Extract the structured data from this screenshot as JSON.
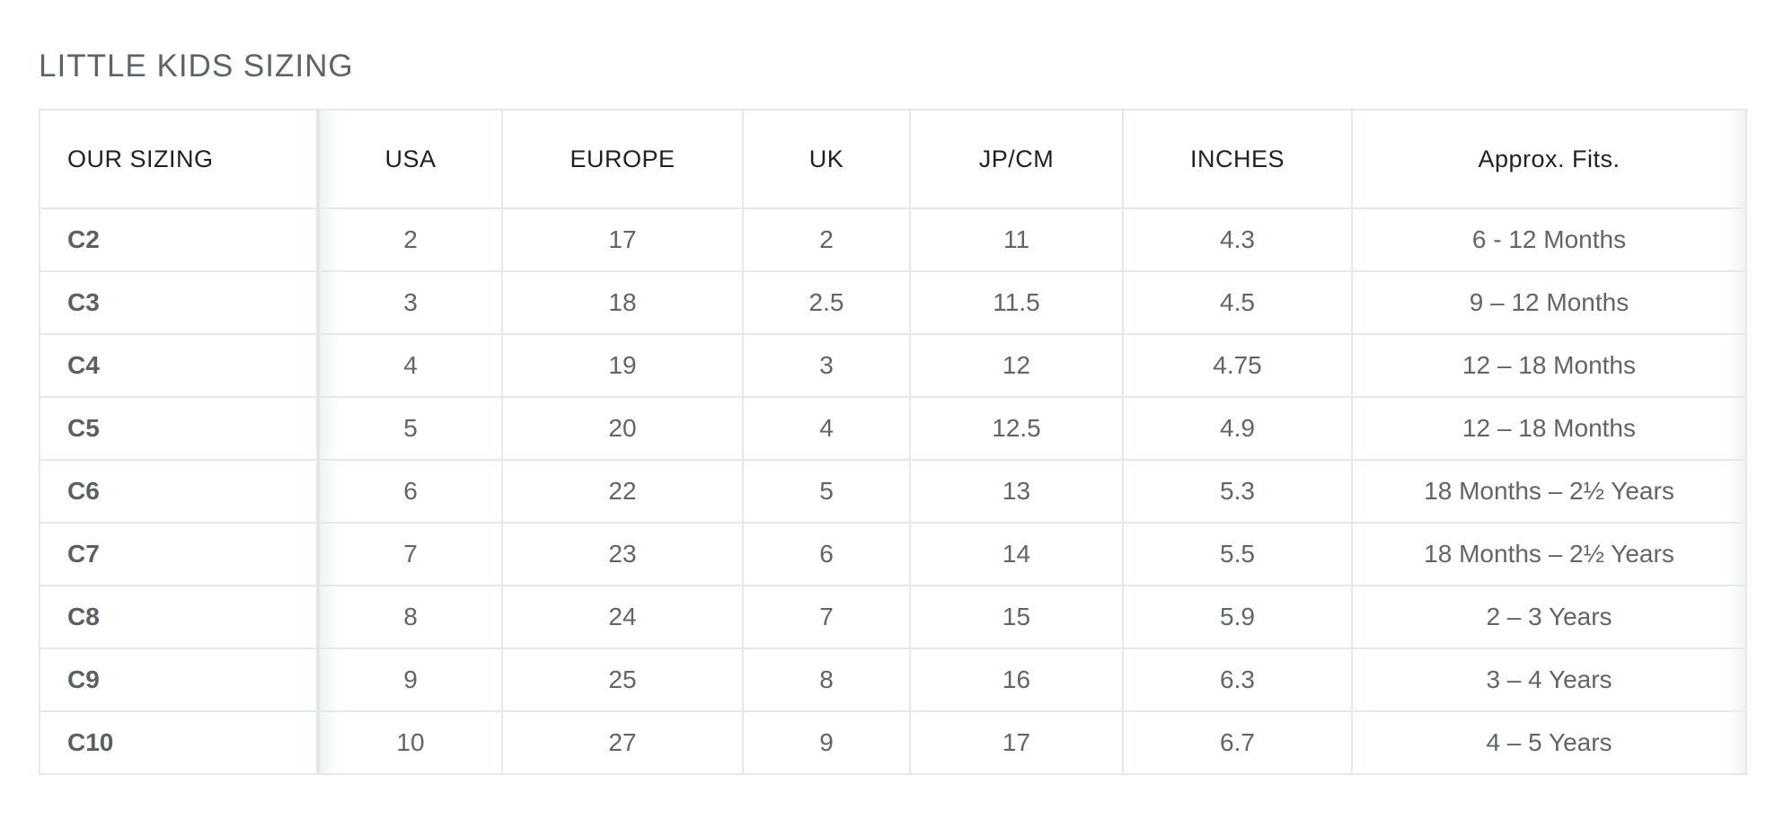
{
  "title": "LITTLE KIDS SIZING",
  "table": {
    "headers": [
      "OUR SIZING",
      "USA",
      "EUROPE",
      "UK",
      "JP/CM",
      "INCHES",
      "Approx. Fits."
    ],
    "rows": [
      [
        "C2",
        "2",
        "17",
        "2",
        "11",
        "4.3",
        "6 - 12 Months"
      ],
      [
        "C3",
        "3",
        "18",
        "2.5",
        "11.5",
        "4.5",
        "9 – 12 Months"
      ],
      [
        "C4",
        "4",
        "19",
        "3",
        "12",
        "4.75",
        "12 – 18 Months"
      ],
      [
        "C5",
        "5",
        "20",
        "4",
        "12.5",
        "4.9",
        "12 – 18 Months"
      ],
      [
        "C6",
        "6",
        "22",
        "5",
        "13",
        "5.3",
        "18 Months – 2½ Years"
      ],
      [
        "C7",
        "7",
        "23",
        "6",
        "14",
        "5.5",
        "18 Months – 2½ Years"
      ],
      [
        "C8",
        "8",
        "24",
        "7",
        "15",
        "5.9",
        "2 – 3 Years"
      ],
      [
        "C9",
        "9",
        "25",
        "8",
        "16",
        "6.3",
        "3 – 4 Years"
      ],
      [
        "C10",
        "10",
        "27",
        "9",
        "17",
        "6.7",
        "4 – 5 Years"
      ]
    ]
  }
}
